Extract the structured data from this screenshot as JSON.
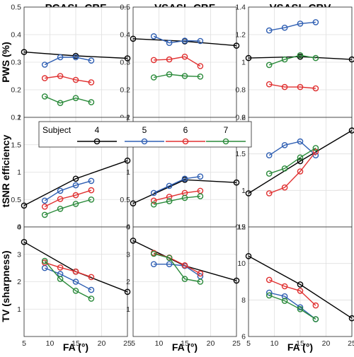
{
  "column_titles": [
    "PCASL-CBF",
    "VSASL-CBF",
    "VSASL-CBV"
  ],
  "row_labels": [
    "PWS (%)",
    "tSNR efficiency",
    "TV (sharpness)"
  ],
  "x_axis_label": "FA (°)",
  "legend": {
    "title": "Subject",
    "entries": [
      {
        "label": "4",
        "color": "#000000"
      },
      {
        "label": "5",
        "color": "#2f5fb3"
      },
      {
        "label": "6",
        "color": "#e03030"
      },
      {
        "label": "7",
        "color": "#2a8a3a"
      }
    ]
  },
  "exponent_labels": {
    "row3_col1": "6",
    "row3_col2": "6",
    "row3_col3": "5"
  },
  "chart_data": [
    {
      "type": "line",
      "row": 0,
      "col": 0,
      "title": "PCASL-CBF",
      "ylabel": "PWS (%)",
      "xlim": [
        5,
        25
      ],
      "ylim": [
        0.1,
        0.5
      ],
      "xticks": [
        5,
        10,
        15,
        20,
        25
      ],
      "yticks": [
        0.1,
        0.2,
        0.3,
        0.4,
        0.5
      ],
      "ytick_labels": [
        "0.1",
        "0.2",
        "0.3",
        "0.4",
        "0.5"
      ],
      "series": [
        {
          "name": "4",
          "x": [
            5,
            15,
            25
          ],
          "y": [
            0.337,
            0.323,
            0.314
          ]
        },
        {
          "name": "5",
          "x": [
            9,
            12,
            15,
            18
          ],
          "y": [
            0.291,
            0.318,
            0.318,
            0.306
          ]
        },
        {
          "name": "6",
          "x": [
            9,
            12,
            15,
            18
          ],
          "y": [
            0.242,
            0.25,
            0.236,
            0.227
          ]
        },
        {
          "name": "7",
          "x": [
            9,
            12,
            15,
            18
          ],
          "y": [
            0.176,
            0.152,
            0.17,
            0.155
          ]
        }
      ]
    },
    {
      "type": "line",
      "row": 0,
      "col": 1,
      "title": "VSASL-CBF",
      "xlim": [
        5,
        25
      ],
      "ylim": [
        0.1,
        0.5
      ],
      "xticks": [
        5,
        10,
        15,
        20,
        25
      ],
      "yticks": [
        0.1,
        0.2,
        0.3,
        0.4,
        0.5
      ],
      "ytick_labels": [
        "0.1",
        "0.2",
        "0.3",
        "0.4",
        "0.5"
      ],
      "series": [
        {
          "name": "4",
          "x": [
            5,
            15,
            25
          ],
          "y": [
            0.385,
            0.376,
            0.36
          ]
        },
        {
          "name": "5",
          "x": [
            9,
            12,
            15,
            18
          ],
          "y": [
            0.394,
            0.37,
            0.378,
            0.377
          ]
        },
        {
          "name": "6",
          "x": [
            9,
            12,
            15,
            18
          ],
          "y": [
            0.308,
            0.31,
            0.32,
            0.286
          ]
        },
        {
          "name": "7",
          "x": [
            9,
            12,
            15,
            18
          ],
          "y": [
            0.245,
            0.256,
            0.25,
            0.248
          ]
        }
      ]
    },
    {
      "type": "line",
      "row": 0,
      "col": 2,
      "title": "VSASL-CBV",
      "xlim": [
        5,
        25
      ],
      "ylim": [
        0.6,
        1.4
      ],
      "xticks": [
        5,
        10,
        15,
        20,
        25
      ],
      "yticks": [
        0.6,
        0.8,
        1,
        1.2,
        1.4
      ],
      "ytick_labels": [
        "0.6",
        "0.8",
        "1",
        "1.2",
        "1.4"
      ],
      "series": [
        {
          "name": "4",
          "x": [
            5,
            15,
            25
          ],
          "y": [
            1.03,
            1.04,
            1.02
          ]
        },
        {
          "name": "5",
          "x": [
            9,
            12,
            15,
            18
          ],
          "y": [
            1.23,
            1.25,
            1.28,
            1.29
          ]
        },
        {
          "name": "6",
          "x": [
            9,
            12,
            15,
            18
          ],
          "y": [
            0.84,
            0.82,
            0.82,
            0.81
          ]
        },
        {
          "name": "7",
          "x": [
            9,
            12,
            15,
            18
          ],
          "y": [
            0.98,
            1.02,
            1.05,
            1.03
          ]
        }
      ]
    },
    {
      "type": "line",
      "row": 1,
      "col": 0,
      "ylabel": "tSNR efficiency",
      "xlim": [
        5,
        25
      ],
      "ylim": [
        0,
        2
      ],
      "xticks": [
        5,
        10,
        15,
        20,
        25
      ],
      "yticks": [
        0,
        0.5,
        1,
        1.5,
        2
      ],
      "ytick_labels": [
        "0",
        "0.5",
        "1",
        "1.5",
        "2"
      ],
      "series": [
        {
          "name": "4",
          "x": [
            5,
            15,
            25
          ],
          "y": [
            0.39,
            0.88,
            1.21
          ]
        },
        {
          "name": "5",
          "x": [
            9,
            12,
            15,
            18
          ],
          "y": [
            0.48,
            0.66,
            0.76,
            0.84
          ]
        },
        {
          "name": "6",
          "x": [
            9,
            12,
            15,
            18
          ],
          "y": [
            0.37,
            0.51,
            0.58,
            0.67
          ]
        },
        {
          "name": "7",
          "x": [
            9,
            12,
            15,
            18
          ],
          "y": [
            0.22,
            0.33,
            0.42,
            0.5
          ]
        }
      ]
    },
    {
      "type": "line",
      "row": 1,
      "col": 1,
      "xlim": [
        5,
        25
      ],
      "ylim": [
        0,
        2
      ],
      "xticks": [
        5,
        10,
        15,
        20,
        25
      ],
      "yticks": [
        0,
        0.5,
        1,
        1.5,
        2
      ],
      "ytick_labels": [
        "0",
        "0.5",
        "1",
        "1.5",
        "2"
      ],
      "series": [
        {
          "name": "4",
          "x": [
            5,
            15,
            25
          ],
          "y": [
            0.43,
            0.86,
            0.81
          ]
        },
        {
          "name": "5",
          "x": [
            9,
            12,
            15,
            18
          ],
          "y": [
            0.62,
            0.75,
            0.88,
            0.92
          ]
        },
        {
          "name": "6",
          "x": [
            9,
            12,
            15,
            18
          ],
          "y": [
            0.48,
            0.55,
            0.62,
            0.66
          ]
        },
        {
          "name": "7",
          "x": [
            9,
            12,
            15,
            18
          ],
          "y": [
            0.41,
            0.47,
            0.53,
            0.56
          ]
        }
      ]
    },
    {
      "type": "line",
      "row": 1,
      "col": 2,
      "xlim": [
        5,
        25
      ],
      "ylim": [
        0.5,
        2
      ],
      "xticks": [
        5,
        10,
        15,
        20,
        25
      ],
      "yticks": [
        0.5,
        1,
        1.5,
        2
      ],
      "ytick_labels": [
        "0.5",
        "1",
        "1.5",
        "2"
      ],
      "series": [
        {
          "name": "4",
          "x": [
            5,
            15,
            25
          ],
          "y": [
            0.96,
            1.4,
            1.82
          ]
        },
        {
          "name": "5",
          "x": [
            9,
            12,
            15,
            18
          ],
          "y": [
            1.48,
            1.62,
            1.67,
            1.48
          ]
        },
        {
          "name": "6",
          "x": [
            9,
            12,
            15,
            18
          ],
          "y": [
            0.96,
            1.04,
            1.26,
            1.53
          ]
        },
        {
          "name": "7",
          "x": [
            9,
            12,
            15,
            18
          ],
          "y": [
            1.23,
            1.3,
            1.45,
            1.58
          ]
        }
      ]
    },
    {
      "type": "line",
      "row": 2,
      "col": 0,
      "ylabel": "TV (sharpness)",
      "xlabel": "FA (°)",
      "xlim": [
        5,
        25
      ],
      "ylim": [
        0,
        4
      ],
      "xticks": [
        5,
        10,
        15,
        20,
        25
      ],
      "yticks": [
        1,
        2,
        3,
        4
      ],
      "ytick_labels": [
        "1",
        "2",
        "3",
        "4"
      ],
      "y_exponent": 6,
      "series": [
        {
          "name": "4",
          "x": [
            5,
            15,
            25
          ],
          "y": [
            3.45,
            2.37,
            1.63
          ]
        },
        {
          "name": "5",
          "x": [
            9,
            12,
            15,
            18
          ],
          "y": [
            2.5,
            2.28,
            2.0,
            1.7
          ]
        },
        {
          "name": "6",
          "x": [
            9,
            12,
            15,
            18
          ],
          "y": [
            2.7,
            2.52,
            2.37,
            2.17
          ]
        },
        {
          "name": "7",
          "x": [
            9,
            12,
            15,
            18
          ],
          "y": [
            2.76,
            2.1,
            1.67,
            1.38
          ]
        }
      ]
    },
    {
      "type": "line",
      "row": 2,
      "col": 1,
      "xlabel": "FA (°)",
      "xlim": [
        5,
        25
      ],
      "ylim": [
        0,
        4
      ],
      "xticks": [
        5,
        10,
        15,
        20,
        25
      ],
      "yticks": [
        1,
        2,
        3,
        4
      ],
      "ytick_labels": [
        "1",
        "2",
        "3",
        "4"
      ],
      "y_exponent": 6,
      "series": [
        {
          "name": "4",
          "x": [
            5,
            15,
            25
          ],
          "y": [
            3.5,
            2.58,
            2.04
          ]
        },
        {
          "name": "5",
          "x": [
            9,
            12,
            15,
            18
          ],
          "y": [
            2.64,
            2.64,
            2.58,
            2.2
          ]
        },
        {
          "name": "6",
          "x": [
            9,
            12,
            15,
            18
          ],
          "y": [
            3.05,
            2.88,
            2.6,
            2.3
          ]
        },
        {
          "name": "7",
          "x": [
            9,
            12,
            15,
            18
          ],
          "y": [
            3.02,
            2.87,
            2.1,
            2.0
          ]
        }
      ]
    },
    {
      "type": "line",
      "row": 2,
      "col": 2,
      "xlabel": "FA (°)",
      "xlim": [
        5,
        25
      ],
      "ylim": [
        6,
        12
      ],
      "xticks": [
        5,
        10,
        15,
        20,
        25
      ],
      "yticks": [
        6,
        8,
        10,
        12
      ],
      "ytick_labels": [
        "6",
        "8",
        "10",
        "12"
      ],
      "y_exponent": 5,
      "series": [
        {
          "name": "4",
          "x": [
            5,
            15,
            25
          ],
          "y": [
            10.4,
            8.85,
            7.0
          ]
        },
        {
          "name": "5",
          "x": [
            9,
            12,
            15,
            18
          ],
          "y": [
            8.4,
            8.2,
            7.6,
            6.95
          ]
        },
        {
          "name": "6",
          "x": [
            9,
            12,
            15,
            18
          ],
          "y": [
            9.1,
            8.75,
            8.5,
            7.7
          ]
        },
        {
          "name": "7",
          "x": [
            9,
            12,
            15,
            18
          ],
          "y": [
            8.25,
            7.95,
            7.5,
            6.95
          ]
        }
      ]
    }
  ]
}
